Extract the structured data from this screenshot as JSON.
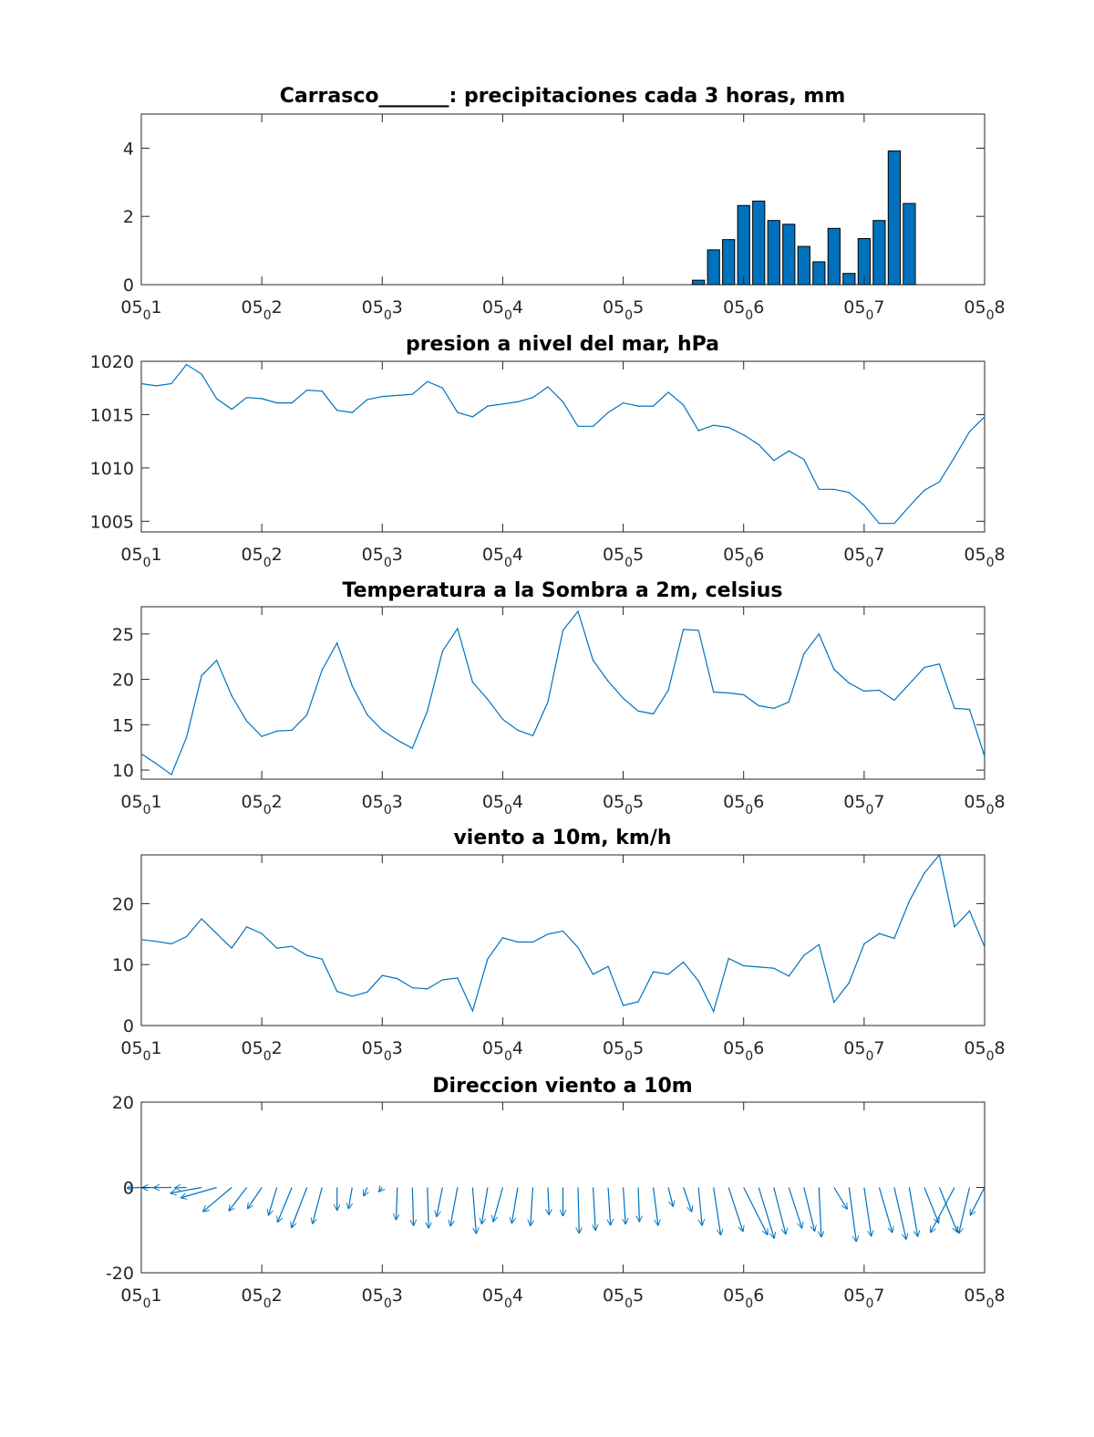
{
  "colors": {
    "series": "#0072BD",
    "axes": "#262626",
    "text": "#262626",
    "bar_edge": "#000000"
  },
  "x_axis": {
    "range": [
      0,
      7
    ],
    "tick_values": [
      0,
      1,
      2,
      3,
      4,
      5,
      6,
      7
    ],
    "ticks": [
      {
        "base": "05",
        "sub": "0",
        "day": "1"
      },
      {
        "base": "05",
        "sub": "0",
        "day": "2"
      },
      {
        "base": "05",
        "sub": "0",
        "day": "3"
      },
      {
        "base": "05",
        "sub": "0",
        "day": "4"
      },
      {
        "base": "05",
        "sub": "0",
        "day": "5"
      },
      {
        "base": "05",
        "sub": "0",
        "day": "6"
      },
      {
        "base": "05",
        "sub": "0",
        "day": "7"
      },
      {
        "base": "05",
        "sub": "0",
        "day": "8"
      }
    ]
  },
  "chart_data": [
    {
      "type": "bar",
      "title": "Carrasco_______: precipitaciones cada 3 horas, mm",
      "ylim": [
        0,
        5
      ],
      "yticks": [
        0,
        2,
        4
      ],
      "bar_width_days": 0.1,
      "x": [
        4.625,
        4.75,
        4.875,
        5,
        5.125,
        5.25,
        5.375,
        5.5,
        5.625,
        5.75,
        5.875,
        6,
        6.125,
        6.25,
        6.375
      ],
      "values": [
        0.13,
        1.02,
        1.32,
        2.32,
        2.45,
        1.88,
        1.77,
        1.12,
        0.67,
        1.65,
        0.33,
        1.35,
        1.88,
        3.92,
        2.38
      ]
    },
    {
      "type": "line",
      "title": "presion a nivel del mar, hPa",
      "ylim": [
        1004,
        1020
      ],
      "yticks": [
        1005,
        1010,
        1015,
        1020
      ],
      "x": [
        0,
        0.125,
        0.25,
        0.375,
        0.5,
        0.625,
        0.75,
        0.875,
        1,
        1.125,
        1.25,
        1.375,
        1.5,
        1.625,
        1.75,
        1.875,
        2,
        2.125,
        2.25,
        2.375,
        2.5,
        2.625,
        2.75,
        2.875,
        3,
        3.125,
        3.25,
        3.375,
        3.5,
        3.625,
        3.75,
        3.875,
        4,
        4.125,
        4.25,
        4.375,
        4.5,
        4.625,
        4.75,
        4.875,
        5,
        5.125,
        5.25,
        5.375,
        5.5,
        5.625,
        5.75,
        5.875,
        6,
        6.125,
        6.25,
        6.375,
        6.5,
        6.625,
        6.75,
        6.875,
        7
      ],
      "values": [
        1017.9,
        1017.7,
        1017.9,
        1019.7,
        1018.8,
        1016.5,
        1015.5,
        1016.6,
        1016.5,
        1016.1,
        1016.1,
        1017.3,
        1017.2,
        1015.4,
        1015.2,
        1016.4,
        1016.7,
        1016.8,
        1016.9,
        1018.1,
        1017.5,
        1015.2,
        1014.8,
        1015.8,
        1016.0,
        1016.2,
        1016.6,
        1017.6,
        1016.2,
        1013.9,
        1013.9,
        1015.2,
        1016.1,
        1015.8,
        1015.8,
        1017.1,
        1015.9,
        1013.5,
        1014.0,
        1013.8,
        1013.1,
        1012.2,
        1010.7,
        1011.6,
        1010.8,
        1008.0,
        1008.0,
        1007.7,
        1006.5,
        1004.8,
        1004.8,
        1006.4,
        1007.9,
        1008.7,
        1011.0,
        1013.4,
        1014.8
      ]
    },
    {
      "type": "line",
      "title": "Temperatura a la Sombra a 2m, celsius",
      "ylim": [
        9,
        28
      ],
      "yticks": [
        10,
        15,
        20,
        25
      ],
      "x": [
        0,
        0.125,
        0.25,
        0.375,
        0.5,
        0.625,
        0.75,
        0.875,
        1,
        1.125,
        1.25,
        1.375,
        1.5,
        1.625,
        1.75,
        1.875,
        2,
        2.125,
        2.25,
        2.375,
        2.5,
        2.625,
        2.75,
        2.875,
        3,
        3.125,
        3.25,
        3.375,
        3.5,
        3.625,
        3.75,
        3.875,
        4,
        4.125,
        4.25,
        4.375,
        4.5,
        4.625,
        4.75,
        4.875,
        5,
        5.125,
        5.25,
        5.375,
        5.5,
        5.625,
        5.75,
        5.875,
        6,
        6.125,
        6.25,
        6.375,
        6.5,
        6.625,
        6.75,
        6.875,
        7
      ],
      "values": [
        11.8,
        10.7,
        9.5,
        13.6,
        20.4,
        22.1,
        18.2,
        15.4,
        13.7,
        14.3,
        14.4,
        16.1,
        21.0,
        24.0,
        19.3,
        16.1,
        14.4,
        13.3,
        12.4,
        16.5,
        23.1,
        25.6,
        19.7,
        17.8,
        15.6,
        14.4,
        13.8,
        17.5,
        25.4,
        27.5,
        22.1,
        19.8,
        17.9,
        16.5,
        16.2,
        18.8,
        25.5,
        25.4,
        18.6,
        18.5,
        18.3,
        17.1,
        16.8,
        17.5,
        22.8,
        25.0,
        21.1,
        19.6,
        18.7,
        18.8,
        17.7,
        19.5,
        21.3,
        21.7,
        16.8,
        16.7,
        11.5
      ]
    },
    {
      "type": "line",
      "title": "viento a 10m, km/h",
      "ylim": [
        0,
        28
      ],
      "yticks": [
        0,
        10,
        20
      ],
      "x": [
        0,
        0.125,
        0.25,
        0.375,
        0.5,
        0.625,
        0.75,
        0.875,
        1,
        1.125,
        1.25,
        1.375,
        1.5,
        1.625,
        1.75,
        1.875,
        2,
        2.125,
        2.25,
        2.375,
        2.5,
        2.625,
        2.75,
        2.875,
        3,
        3.125,
        3.25,
        3.375,
        3.5,
        3.625,
        3.75,
        3.875,
        4,
        4.125,
        4.25,
        4.375,
        4.5,
        4.625,
        4.75,
        4.875,
        5,
        5.125,
        5.25,
        5.375,
        5.5,
        5.625,
        5.75,
        5.875,
        6,
        6.125,
        6.25,
        6.375,
        6.5,
        6.625,
        6.75,
        6.875,
        7
      ],
      "values": [
        14.1,
        13.8,
        13.4,
        14.6,
        17.5,
        15.1,
        12.7,
        16.2,
        15.1,
        12.7,
        13.0,
        11.5,
        10.9,
        5.6,
        4.8,
        5.5,
        8.2,
        7.7,
        6.2,
        6.0,
        7.5,
        7.8,
        2.4,
        10.9,
        14.4,
        13.7,
        13.7,
        15.0,
        15.5,
        12.8,
        8.4,
        9.7,
        3.3,
        3.9,
        8.8,
        8.4,
        10.4,
        7.3,
        2.3,
        11.0,
        9.8,
        9.6,
        9.4,
        8.1,
        11.5,
        13.3,
        3.8,
        7.0,
        13.4,
        15.1,
        14.3,
        20.4,
        25.0,
        28.0,
        16.2,
        18.8,
        12.9
      ]
    },
    {
      "type": "quiver",
      "title": "Direccion viento a 10m",
      "ylim": [
        -20,
        20
      ],
      "yticks": [
        -20,
        0,
        20
      ],
      "x": [
        0,
        0.125,
        0.25,
        0.375,
        0.5,
        0.625,
        0.75,
        0.875,
        1,
        1.125,
        1.25,
        1.375,
        1.5,
        1.625,
        1.75,
        1.875,
        2,
        2.125,
        2.25,
        2.375,
        2.5,
        2.625,
        2.75,
        2.875,
        3,
        3.125,
        3.25,
        3.375,
        3.5,
        3.625,
        3.75,
        3.875,
        4,
        4.125,
        4.25,
        4.375,
        4.5,
        4.625,
        4.75,
        4.875,
        5,
        5.125,
        5.25,
        5.375,
        5.5,
        5.625,
        5.75,
        5.875,
        6,
        6.125,
        6.25,
        6.375,
        6.5,
        6.625,
        6.75,
        6.875,
        7
      ],
      "u": [
        -0.12,
        -0.12,
        -0.15,
        -0.1,
        -0.26,
        -0.3,
        -0.24,
        -0.15,
        -0.12,
        -0.07,
        -0.12,
        -0.13,
        -0.08,
        0.0,
        -0.03,
        -0.03,
        -0.03,
        -0.01,
        0.01,
        0.01,
        -0.05,
        -0.06,
        0.03,
        -0.05,
        -0.08,
        -0.05,
        -0.02,
        0.01,
        0.0,
        0.01,
        0.02,
        0.02,
        0.02,
        0.01,
        0.04,
        0.04,
        0.07,
        0.03,
        0.06,
        0.12,
        0.2,
        0.13,
        0.1,
        0.11,
        0.09,
        0.02,
        0.11,
        0.06,
        0.06,
        0.11,
        0.1,
        0.07,
        0.12,
        0.15,
        -0.2,
        -0.09,
        -0.12
      ],
      "v": [
        -0.1,
        -0.06,
        -0.04,
        -0.06,
        -1.34,
        -2.45,
        -5.72,
        -5.54,
        -5.02,
        -6.58,
        -8.21,
        -9.52,
        -8.6,
        -5.46,
        -5.07,
        -2.07,
        -1.08,
        -7.65,
        -9.03,
        -9.61,
        -6.92,
        -9.14,
        -10.89,
        -8.63,
        -8.08,
        -8.46,
        -9.05,
        -6.5,
        -6.75,
        -10.83,
        -10.13,
        -8.93,
        -8.69,
        -8.09,
        -8.99,
        -4.55,
        -5.75,
        -8.96,
        -11.24,
        -10.4,
        -11.17,
        -11.99,
        -11.04,
        -9.61,
        -10.34,
        -11.69,
        -5.13,
        -12.78,
        -11.5,
        -10.63,
        -12.23,
        -11.57,
        -8.41,
        -10.58,
        -10.6,
        -10.82,
        -6.57
      ]
    }
  ]
}
